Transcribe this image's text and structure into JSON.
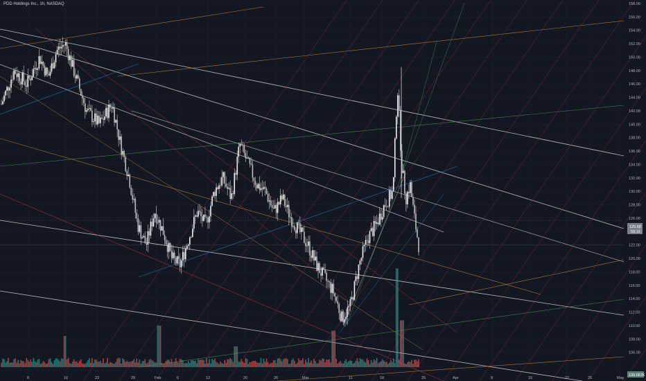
{
  "header": {
    "title": "PDD Holdings Inc., 1h, NASDAQ"
  },
  "price_tags": {
    "current": "125.68",
    "countdown": "59:16",
    "volume": "139.667K"
  },
  "colors": {
    "background": "#131722",
    "up": "#e8e8e8",
    "down": "#e8e8e8",
    "vol_up": "#26a69a",
    "vol_down": "#ef5350",
    "white_line": "#d9d9d9"
  },
  "chart_data": {
    "type": "candlestick",
    "title": "",
    "ylim": [
      104,
      158
    ],
    "y_ticks": [
      106,
      108,
      110,
      112,
      114,
      116,
      118,
      120,
      122,
      124,
      126,
      128,
      130,
      132,
      134,
      136,
      138,
      140,
      142,
      144,
      146,
      148,
      150,
      152,
      154,
      156,
      158
    ],
    "x_labels": [
      "8",
      "16",
      "22",
      "29",
      "Feb",
      "6",
      "12",
      "20",
      "26",
      "Mar",
      "11",
      "18",
      "25",
      "Apr",
      "8",
      "15",
      "22",
      "25",
      "May"
    ],
    "close_path": [
      [
        0,
        143
      ],
      [
        3,
        148
      ],
      [
        6,
        146
      ],
      [
        9,
        150
      ],
      [
        11,
        147
      ],
      [
        13,
        151
      ],
      [
        15,
        152
      ],
      [
        17,
        148
      ],
      [
        20,
        142
      ],
      [
        23,
        140
      ],
      [
        26,
        143
      ],
      [
        28,
        137
      ],
      [
        30,
        132
      ],
      [
        32,
        125
      ],
      [
        34,
        122
      ],
      [
        36,
        127
      ],
      [
        38,
        124
      ],
      [
        40,
        120
      ],
      [
        42,
        119
      ],
      [
        44,
        123
      ],
      [
        46,
        127
      ],
      [
        48,
        125
      ],
      [
        50,
        130
      ],
      [
        52,
        132
      ],
      [
        54,
        129
      ],
      [
        56,
        137
      ],
      [
        58,
        134
      ],
      [
        60,
        131
      ],
      [
        62,
        130
      ],
      [
        64,
        127
      ],
      [
        66,
        129
      ],
      [
        68,
        126
      ],
      [
        70,
        124
      ],
      [
        72,
        122
      ],
      [
        74,
        119
      ],
      [
        76,
        117
      ],
      [
        78,
        115
      ],
      [
        80,
        111
      ],
      [
        82,
        113
      ],
      [
        84,
        119
      ],
      [
        86,
        123
      ],
      [
        88,
        125
      ],
      [
        90,
        128
      ],
      [
        92,
        130
      ],
      [
        93,
        146
      ],
      [
        94,
        134
      ],
      [
        95,
        129
      ],
      [
        96,
        131
      ],
      [
        97,
        126
      ],
      [
        98,
        122
      ]
    ],
    "volume_spikes": [
      [
        15,
        0.3
      ],
      [
        37,
        0.4
      ],
      [
        55,
        0.2
      ],
      [
        78,
        0.35
      ],
      [
        93,
        0.95
      ],
      [
        94,
        0.45
      ]
    ],
    "last_price": 125.68
  }
}
